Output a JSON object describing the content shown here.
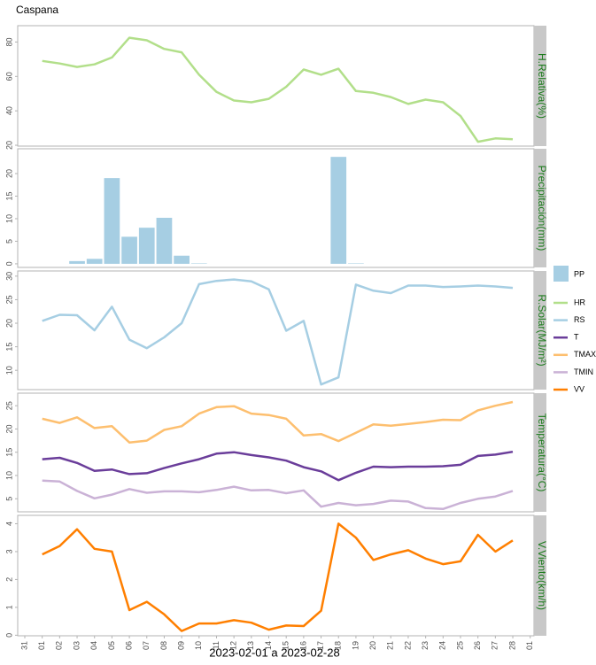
{
  "chart_data": [
    {
      "type": "line",
      "title": "Caspana",
      "strip": "H.Relativa(%)",
      "ylim": [
        19.5,
        89.5
      ],
      "yticks": [
        20,
        40,
        60,
        80
      ],
      "series": [
        {
          "name": "HR",
          "color": "#b2df8a",
          "values": [
            null,
            69,
            67.5,
            65.5,
            67,
            71,
            82.5,
            81,
            76,
            74,
            61,
            51,
            46,
            45,
            47,
            54,
            64,
            61,
            64.5,
            51.5,
            50.5,
            48,
            44,
            46.5,
            45,
            37,
            22,
            24,
            23.5,
            null
          ]
        }
      ]
    },
    {
      "type": "bar",
      "strip": "Precipitación(mm)",
      "ylim": [
        -0.8,
        25.5
      ],
      "yticks": [
        0,
        5,
        10,
        15,
        20
      ],
      "series": [
        {
          "name": "PP",
          "color": "#a6cee3",
          "values": [
            null,
            0,
            0,
            0.6,
            1.1,
            19,
            6,
            8,
            10.2,
            1.8,
            0.1,
            0,
            0,
            0,
            0,
            0,
            0,
            0,
            23.7,
            0.1,
            0,
            0,
            0,
            0,
            0,
            0,
            0,
            0,
            0,
            null
          ]
        }
      ]
    },
    {
      "type": "line",
      "strip": "R.Solar(MJ/m²)",
      "ylim": [
        5.9,
        31.1
      ],
      "yticks": [
        10,
        15,
        20,
        25,
        30
      ],
      "series": [
        {
          "name": "RS",
          "color": "#a6cee3",
          "values": [
            null,
            20.5,
            21.8,
            21.7,
            18.5,
            23.5,
            16.5,
            14.7,
            17,
            20,
            28.3,
            29,
            29.3,
            28.9,
            27.2,
            18.4,
            20.5,
            7,
            8.5,
            28.2,
            26.9,
            26.4,
            28,
            28,
            27.7,
            27.8,
            28,
            27.8,
            27.5,
            null
          ]
        }
      ]
    },
    {
      "type": "line",
      "strip": "Temperatura(°C)",
      "ylim": [
        2.2,
        27.7
      ],
      "yticks": [
        5,
        10,
        15,
        20,
        25
      ],
      "series": [
        {
          "name": "T",
          "color": "#6a3d9a",
          "values": [
            null,
            13.5,
            13.8,
            12.7,
            11,
            11.3,
            10.3,
            10.5,
            11.6,
            12.6,
            13.5,
            14.7,
            15,
            14.4,
            13.9,
            13.2,
            11.8,
            10.9,
            9,
            10.6,
            11.9,
            11.8,
            11.9,
            11.9,
            12,
            12.3,
            14.2,
            14.5,
            15.1,
            null
          ]
        },
        {
          "name": "TMAX",
          "color": "#fdbf6f",
          "values": [
            null,
            22.2,
            21.3,
            22.5,
            20.2,
            20.6,
            17.1,
            17.5,
            19.8,
            20.6,
            23.3,
            24.7,
            24.9,
            23.3,
            23,
            22.2,
            18.6,
            18.9,
            17.4,
            19.2,
            21,
            20.7,
            21.1,
            21.5,
            22,
            21.9,
            24,
            25,
            25.8,
            null
          ]
        },
        {
          "name": "TMIN",
          "color": "#cab2d6",
          "values": [
            null,
            8.9,
            8.7,
            6.7,
            5.1,
            5.9,
            7.1,
            6.3,
            6.6,
            6.6,
            6.4,
            6.9,
            7.6,
            6.8,
            6.9,
            6.2,
            6.8,
            3.3,
            4.1,
            3.6,
            3.9,
            4.6,
            4.4,
            3,
            2.8,
            4.1,
            5,
            5.5,
            6.7,
            null
          ]
        }
      ]
    },
    {
      "type": "line",
      "strip": "V.Viento(km/h)",
      "ylim": [
        -0.02,
        4.3
      ],
      "yticks": [
        0,
        1,
        2,
        3,
        4
      ],
      "xlabel": "2023-02-01 a 2023-02-28",
      "categories": [
        "31",
        "01",
        "02",
        "03",
        "04",
        "05",
        "06",
        "07",
        "08",
        "09",
        "10",
        "11",
        "12",
        "13",
        "14",
        "15",
        "16",
        "17",
        "18",
        "19",
        "20",
        "21",
        "22",
        "23",
        "24",
        "25",
        "26",
        "27",
        "28",
        "01"
      ],
      "series": [
        {
          "name": "VV",
          "color": "#ff7f00",
          "values": [
            null,
            2.9,
            3.2,
            3.8,
            3.1,
            3,
            0.9,
            1.2,
            0.75,
            0.15,
            0.42,
            0.42,
            0.54,
            0.45,
            0.2,
            0.35,
            0.33,
            0.88,
            4,
            3.5,
            2.7,
            2.9,
            3.05,
            2.75,
            2.55,
            2.65,
            3.6,
            3,
            3.4,
            null
          ]
        }
      ]
    }
  ]
}
